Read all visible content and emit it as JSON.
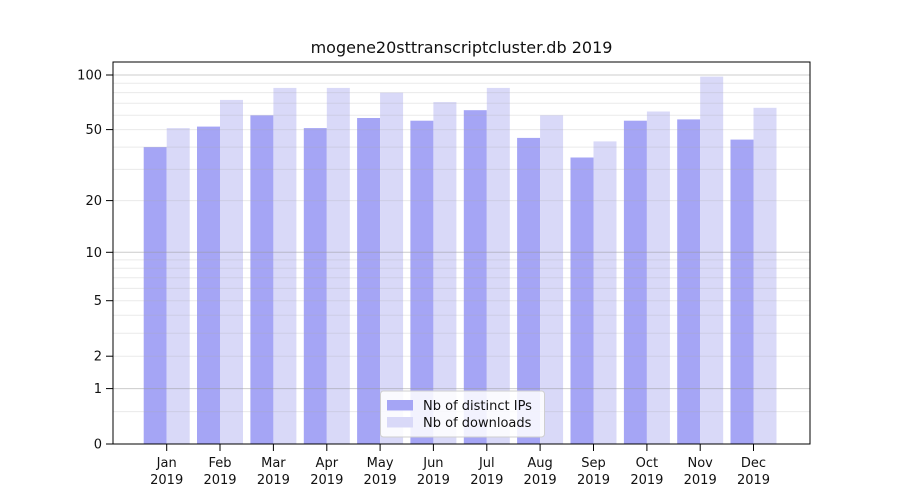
{
  "figure": {
    "background": "#ffffff"
  },
  "chart_data": {
    "type": "bar",
    "title": "mogene20sttranscriptcluster.db 2019",
    "categories": [
      "Jan",
      "Feb",
      "Mar",
      "Apr",
      "May",
      "Jun",
      "Jul",
      "Aug",
      "Sep",
      "Oct",
      "Nov",
      "Dec"
    ],
    "year": "2019",
    "series": [
      {
        "name": "Nb of distinct IPs",
        "color": "#a5a5f5",
        "values": [
          40,
          52,
          60,
          51,
          58,
          56,
          64,
          45,
          35,
          56,
          57,
          44
        ]
      },
      {
        "name": "Nb of downloads",
        "color": "#d9d9f8",
        "values": [
          51,
          73,
          85,
          85,
          80,
          71,
          85,
          60,
          43,
          63,
          98,
          66
        ]
      }
    ],
    "y_axis": {
      "scale": "log1p",
      "ticks": [
        0,
        1,
        2,
        5,
        10,
        20,
        50,
        100
      ],
      "minor_gridlines": [
        0.5,
        3,
        4,
        6,
        7,
        8,
        9,
        30,
        40,
        60,
        70,
        80,
        90
      ],
      "range_top": 118
    },
    "x_axis": {
      "tick_format": "month over year"
    },
    "legend": {
      "position": "bottom-center"
    },
    "grid": "on",
    "gridlines_above_bars": true
  }
}
